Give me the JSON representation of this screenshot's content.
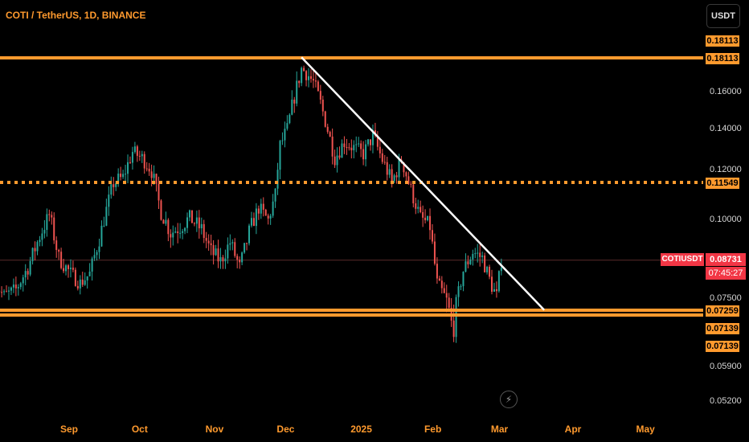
{
  "header": {
    "title": "COTI / TetherUS, 1D, BINANCE",
    "currency": "USDT"
  },
  "colors": {
    "up": "#26a69a",
    "down": "#ef5350",
    "level": "#ff9a2e",
    "trend": "#ffffff",
    "current": "#f23645"
  },
  "icons": {
    "alert": "lightning-bolt-icon"
  },
  "chart_data": {
    "type": "candlestick",
    "title": "COTI / TetherUS, 1D, BINANCE",
    "symbol": "COTIUSDT",
    "x_ticks": [
      "Sep",
      "Oct",
      "Nov",
      "Dec",
      "2025",
      "Feb",
      "Mar",
      "Apr",
      "May"
    ],
    "x_tick_dates": [
      "2024-09-01",
      "2024-10-01",
      "2024-11-01",
      "2024-12-01",
      "2025-01-01",
      "2025-02-01",
      "2025-03-01",
      "2025-04-01",
      "2025-05-01"
    ],
    "y_ticks": [
      0.16,
      0.14,
      0.12,
      0.1,
      0.075,
      0.059,
      0.052
    ],
    "y_tick_labels": [
      "0.16000",
      "0.14000",
      "0.12000",
      "0.10000",
      "0.07500",
      "0.05900",
      "0.05200"
    ],
    "y_range": [
      0.05,
      0.195
    ],
    "x_range": [
      "2024-08-01",
      "2025-05-15"
    ],
    "levels": [
      {
        "value": 0.18113,
        "label": "0.18113",
        "style": "solid"
      },
      {
        "value": 0.18113,
        "label": "0.18113",
        "style": "solid"
      },
      {
        "value": 0.11549,
        "label": "0.11549",
        "style": "dotted"
      },
      {
        "value": 0.07259,
        "label": "0.07259",
        "style": "solid"
      },
      {
        "value": 0.07139,
        "label": "0.07139",
        "style": "solid"
      },
      {
        "value": 0.07139,
        "label": "0.07139",
        "style": "solid"
      }
    ],
    "trendline": {
      "start": [
        "2024-12-08",
        0.181
      ],
      "end": [
        "2025-03-20",
        0.0735
      ]
    },
    "current_price": {
      "value": 0.08731,
      "label": "0.08731",
      "countdown": "07:45:27"
    },
    "closes": [
      [
        "2024-08-01",
        0.08
      ],
      [
        "2024-08-05",
        0.076
      ],
      [
        "2024-08-10",
        0.078
      ],
      [
        "2024-08-15",
        0.085
      ],
      [
        "2024-08-20",
        0.095
      ],
      [
        "2024-08-24",
        0.102
      ],
      [
        "2024-08-28",
        0.088
      ],
      [
        "2024-09-02",
        0.083
      ],
      [
        "2024-09-06",
        0.08
      ],
      [
        "2024-09-10",
        0.083
      ],
      [
        "2024-09-15",
        0.097
      ],
      [
        "2024-09-20",
        0.115
      ],
      [
        "2024-09-24",
        0.117
      ],
      [
        "2024-09-28",
        0.129
      ],
      [
        "2024-10-02",
        0.126
      ],
      [
        "2024-10-06",
        0.12
      ],
      [
        "2024-10-10",
        0.103
      ],
      [
        "2024-10-14",
        0.096
      ],
      [
        "2024-10-18",
        0.098
      ],
      [
        "2024-10-22",
        0.101
      ],
      [
        "2024-10-27",
        0.097
      ],
      [
        "2024-10-31",
        0.09
      ],
      [
        "2024-11-04",
        0.087
      ],
      [
        "2024-11-08",
        0.093
      ],
      [
        "2024-11-12",
        0.085
      ],
      [
        "2024-11-16",
        0.096
      ],
      [
        "2024-11-20",
        0.105
      ],
      [
        "2024-11-24",
        0.1
      ],
      [
        "2024-11-27",
        0.11
      ],
      [
        "2024-11-29",
        0.132
      ],
      [
        "2024-12-02",
        0.14
      ],
      [
        "2024-12-05",
        0.158
      ],
      [
        "2024-12-08",
        0.174
      ],
      [
        "2024-12-10",
        0.172
      ],
      [
        "2024-12-13",
        0.166
      ],
      [
        "2024-12-16",
        0.154
      ],
      [
        "2024-12-19",
        0.14
      ],
      [
        "2024-12-22",
        0.126
      ],
      [
        "2024-12-26",
        0.134
      ],
      [
        "2024-12-30",
        0.131
      ],
      [
        "2025-01-03",
        0.128
      ],
      [
        "2025-01-07",
        0.137
      ],
      [
        "2025-01-11",
        0.125
      ],
      [
        "2025-01-15",
        0.115
      ],
      [
        "2025-01-19",
        0.125
      ],
      [
        "2025-01-23",
        0.112
      ],
      [
        "2025-01-27",
        0.101
      ],
      [
        "2025-01-31",
        0.098
      ],
      [
        "2025-02-03",
        0.08
      ],
      [
        "2025-02-06",
        0.076
      ],
      [
        "2025-02-10",
        0.07
      ],
      [
        "2025-02-14",
        0.084
      ],
      [
        "2025-02-18",
        0.09
      ],
      [
        "2025-02-22",
        0.088
      ],
      [
        "2025-02-26",
        0.079
      ],
      [
        "2025-02-28",
        0.076
      ],
      [
        "2025-03-02",
        0.0873
      ]
    ]
  }
}
